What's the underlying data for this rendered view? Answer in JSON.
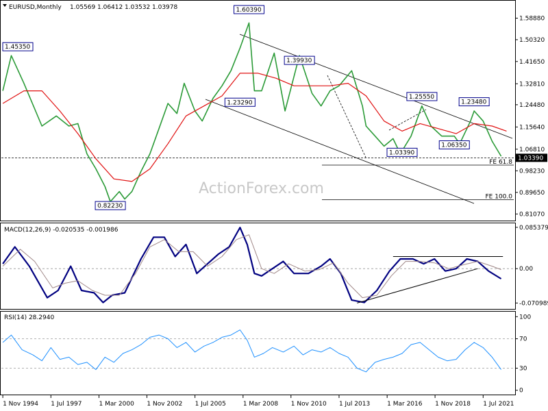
{
  "chart_data": {
    "type": "line",
    "symbol": "EURUSD,Monthly",
    "ohlc": [
      "1.05569",
      "1.06412",
      "1.03532",
      "1.03978"
    ],
    "x_ticks": [
      "1 Nov 1994",
      "1 Jul 1997",
      "1 Mar 2000",
      "1 Nov 2002",
      "1 Jul 2005",
      "1 Mar 2008",
      "1 Nov 2010",
      "1 Jul 2013",
      "1 Mar 2016",
      "1 Nov 2018",
      "1 Jul 2021"
    ],
    "x_tick_values": [
      1994.83,
      1997.5,
      2000.17,
      2002.83,
      2005.5,
      2008.17,
      2010.83,
      2013.5,
      2016.17,
      2018.83,
      2021.5
    ],
    "x_range": [
      1994.75,
      2023.2
    ],
    "watermark": "ActionForex.com",
    "price": {
      "y_ticks": [
        "1.58880",
        "1.50320",
        "1.41650",
        "1.32810",
        "1.24480",
        "1.15640",
        "1.06810",
        "0.98230",
        "0.89650",
        "0.81070"
      ],
      "y_tick_values": [
        1.5888,
        1.5032,
        1.4165,
        1.3281,
        1.2448,
        1.1564,
        1.0681,
        0.9823,
        0.8965,
        0.8107
      ],
      "ylim": [
        0.79,
        1.65
      ],
      "current_label": "1.03390",
      "current_value": 1.0339,
      "series": [
        {
          "name": "Close",
          "color": "#2a9a36",
          "x": [
            1994.83,
            1995.3,
            1996.0,
            1997.0,
            1997.8,
            1998.5,
            1999.0,
            1999.5,
            2000.0,
            2000.5,
            2000.8,
            2001.3,
            2001.6,
            2002.0,
            2002.5,
            2003.0,
            2003.5,
            2004.0,
            2004.5,
            2004.9,
            2005.5,
            2005.9,
            2006.5,
            2007.0,
            2007.5,
            2008.0,
            2008.5,
            2008.8,
            2009.2,
            2009.9,
            2010.5,
            2011.3,
            2012.0,
            2012.5,
            2013.0,
            2013.5,
            2014.2,
            2014.8,
            2015.0,
            2015.5,
            2016.0,
            2016.5,
            2016.9,
            2017.5,
            2018.1,
            2018.6,
            2019.2,
            2019.9,
            2020.2,
            2020.8,
            2021.0,
            2021.5,
            2022.0,
            2022.5
          ],
          "values": [
            1.3,
            1.44,
            1.33,
            1.16,
            1.2,
            1.16,
            1.17,
            1.05,
            0.99,
            0.92,
            0.86,
            0.9,
            0.87,
            0.9,
            0.98,
            1.05,
            1.15,
            1.25,
            1.21,
            1.33,
            1.22,
            1.18,
            1.27,
            1.32,
            1.38,
            1.47,
            1.57,
            1.3,
            1.3,
            1.45,
            1.22,
            1.44,
            1.29,
            1.24,
            1.3,
            1.32,
            1.38,
            1.24,
            1.16,
            1.12,
            1.08,
            1.11,
            1.05,
            1.12,
            1.24,
            1.16,
            1.12,
            1.12,
            1.09,
            1.18,
            1.22,
            1.18,
            1.1,
            1.04
          ]
        },
        {
          "name": "MA",
          "color": "#e01010",
          "x": [
            1994.83,
            1996.0,
            1997.0,
            1998.0,
            1999.0,
            2000.0,
            2001.0,
            2002.0,
            2003.0,
            2004.0,
            2005.0,
            2006.0,
            2007.0,
            2008.0,
            2009.0,
            2010.0,
            2011.0,
            2012.0,
            2013.0,
            2014.0,
            2015.0,
            2016.0,
            2017.0,
            2018.0,
            2019.0,
            2020.0,
            2021.0,
            2022.0,
            2022.8
          ],
          "values": [
            1.25,
            1.3,
            1.3,
            1.22,
            1.13,
            1.03,
            0.95,
            0.94,
            0.99,
            1.09,
            1.2,
            1.24,
            1.28,
            1.37,
            1.37,
            1.35,
            1.32,
            1.32,
            1.32,
            1.33,
            1.28,
            1.18,
            1.14,
            1.17,
            1.15,
            1.13,
            1.17,
            1.16,
            1.14
          ]
        }
      ],
      "annotations": [
        {
          "label": "1.45350",
          "x": 1995.3,
          "y": 1.4535
        },
        {
          "label": "0.82230",
          "x": 2000.8,
          "y": 0.8223
        },
        {
          "label": "1.60390",
          "x": 2008.5,
          "y": 1.6039
        },
        {
          "label": "1.23290",
          "x": 2008.0,
          "y": 1.2329
        },
        {
          "label": "1.39930",
          "x": 2011.3,
          "y": 1.3993
        },
        {
          "label": "1.03390",
          "x": 2017.0,
          "y": 1.0339
        },
        {
          "label": "1.25550",
          "x": 2018.1,
          "y": 1.2555
        },
        {
          "label": "1.06350",
          "x": 2019.9,
          "y": 1.0635
        },
        {
          "label": "1.23480",
          "x": 2021.0,
          "y": 1.2348
        }
      ],
      "fe_levels": [
        {
          "label": "FE 61.8",
          "value": 1.005
        },
        {
          "label": "FE 100.0",
          "value": 0.868
        }
      ]
    },
    "macd": {
      "label": "MACD(12,26,9) -0.020535 -0.001986",
      "y_ticks": [
        "0.085379",
        "0.00",
        "-0.070989"
      ],
      "y_tick_values": [
        0.085379,
        0.0,
        -0.070989
      ],
      "ylim": [
        -0.079,
        0.088
      ],
      "series": [
        {
          "name": "MACD",
          "color": "#000080",
          "x": [
            1994.83,
            1995.5,
            1996.3,
            1997.3,
            1997.9,
            1998.6,
            1999.2,
            1999.9,
            2000.4,
            2000.9,
            2001.6,
            2002.5,
            2003.2,
            2003.8,
            2004.4,
            2005.0,
            2005.6,
            2006.2,
            2006.8,
            2007.4,
            2008.0,
            2008.4,
            2008.8,
            2009.2,
            2009.8,
            2010.4,
            2011.0,
            2011.8,
            2012.5,
            2013.0,
            2013.6,
            2014.2,
            2014.9,
            2015.6,
            2016.3,
            2016.9,
            2017.6,
            2018.2,
            2018.8,
            2019.4,
            2020.0,
            2020.6,
            2021.2,
            2021.8,
            2022.5
          ],
          "values": [
            0.01,
            0.045,
            0.005,
            -0.06,
            -0.045,
            0.005,
            -0.045,
            -0.05,
            -0.07,
            -0.055,
            -0.05,
            0.02,
            0.065,
            0.065,
            0.025,
            0.05,
            -0.01,
            0.01,
            0.03,
            0.045,
            0.085,
            0.05,
            -0.01,
            -0.015,
            0.0,
            0.015,
            -0.01,
            -0.01,
            0.005,
            0.02,
            -0.01,
            -0.065,
            -0.07,
            -0.045,
            -0.005,
            0.02,
            0.02,
            0.01,
            0.02,
            -0.005,
            0.0,
            0.02,
            0.015,
            -0.005,
            -0.021
          ]
        },
        {
          "name": "Signal",
          "color": "#a08888",
          "x": [
            1994.83,
            1995.8,
            1996.6,
            1997.6,
            1998.3,
            1999.0,
            1999.8,
            2000.5,
            2001.3,
            2002.2,
            2003.0,
            2003.8,
            2004.6,
            2005.4,
            2006.2,
            2007.0,
            2007.8,
            2008.5,
            2009.2,
            2009.9,
            2010.7,
            2011.6,
            2012.4,
            2013.2,
            2014.0,
            2014.8,
            2015.6,
            2016.4,
            2017.2,
            2018.0,
            2018.8,
            2019.6,
            2020.4,
            2021.2,
            2022.0,
            2022.5
          ],
          "values": [
            0.005,
            0.04,
            0.015,
            -0.04,
            -0.03,
            -0.025,
            -0.045,
            -0.055,
            -0.055,
            -0.01,
            0.045,
            0.06,
            0.035,
            0.035,
            0.005,
            0.025,
            0.06,
            0.07,
            0.0,
            -0.01,
            0.01,
            -0.005,
            -0.002,
            0.012,
            -0.03,
            -0.06,
            -0.055,
            -0.015,
            0.015,
            0.015,
            0.012,
            0.0,
            0.008,
            0.015,
            0.005,
            -0.002
          ]
        }
      ],
      "trendlines": [
        {
          "x1": 2014.5,
          "y1": -0.071,
          "x2": 2021.2,
          "y2": 0.0
        },
        {
          "x1": 2016.5,
          "y1": 0.025,
          "x2": 2022.6,
          "y2": 0.025
        }
      ]
    },
    "rsi": {
      "label": "RSI(14) 28.2940",
      "y_ticks": [
        "100",
        "70",
        "30",
        "0"
      ],
      "y_tick_values": [
        100,
        70,
        30,
        0
      ],
      "ylim": [
        -4,
        104
      ],
      "series": [
        {
          "name": "RSI",
          "color": "#1e90ff",
          "x": [
            1994.83,
            1995.3,
            1995.9,
            1996.5,
            1997.0,
            1997.5,
            1998.0,
            1998.5,
            1999.0,
            1999.5,
            2000.0,
            2000.5,
            2001.0,
            2001.5,
            2002.0,
            2002.5,
            2003.0,
            2003.5,
            2004.0,
            2004.5,
            2005.0,
            2005.5,
            2006.0,
            2006.5,
            2007.0,
            2007.5,
            2008.0,
            2008.4,
            2008.8,
            2009.3,
            2009.8,
            2010.4,
            2011.0,
            2011.5,
            2012.0,
            2012.5,
            2013.0,
            2013.5,
            2014.0,
            2014.5,
            2015.0,
            2015.5,
            2016.0,
            2016.5,
            2017.0,
            2017.5,
            2018.0,
            2018.5,
            2019.0,
            2019.5,
            2020.0,
            2020.5,
            2021.0,
            2021.5,
            2022.0,
            2022.5
          ],
          "values": [
            65,
            75,
            55,
            48,
            40,
            58,
            42,
            45,
            35,
            38,
            28,
            45,
            38,
            50,
            55,
            62,
            72,
            75,
            70,
            58,
            65,
            52,
            60,
            65,
            72,
            75,
            82,
            68,
            45,
            50,
            58,
            52,
            60,
            48,
            55,
            52,
            58,
            50,
            45,
            30,
            25,
            38,
            42,
            45,
            50,
            62,
            65,
            55,
            45,
            40,
            42,
            55,
            65,
            58,
            45,
            28
          ]
        }
      ],
      "levels": [
        70,
        30
      ]
    }
  }
}
